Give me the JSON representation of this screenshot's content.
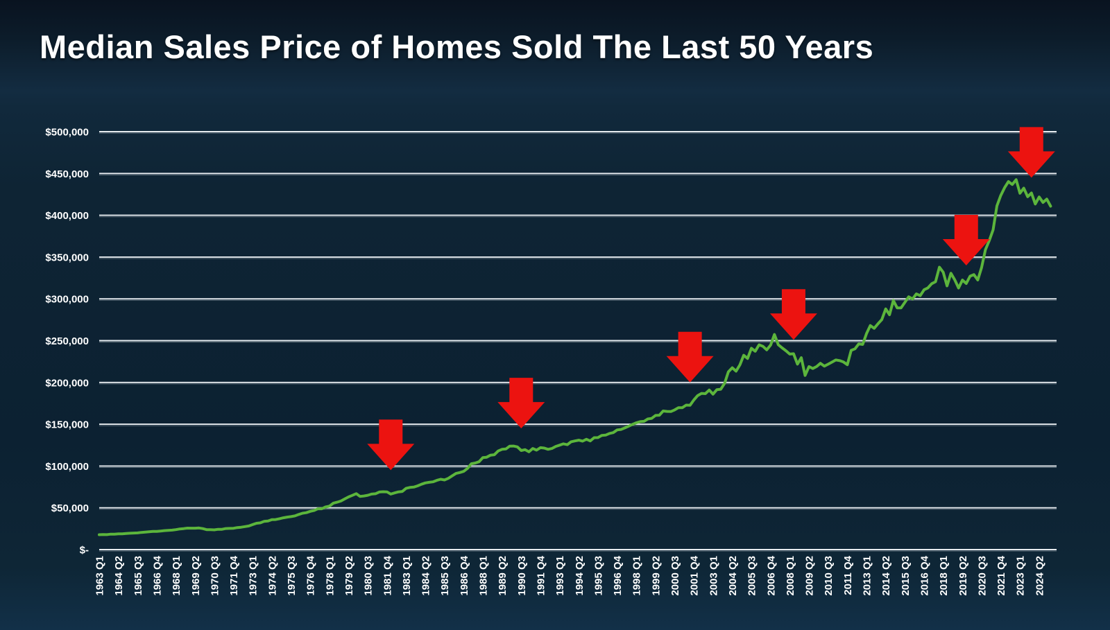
{
  "page": {
    "title": "Median Sales Price of Homes Sold The Last 50 Years"
  },
  "theme": {
    "background": "#0d2233",
    "title_color": "#ffffff",
    "grid_color": "#e8edf1",
    "grid_shadow_color": "#9fabb4",
    "line_color": "#5cb53c",
    "arrow_color": "#ec1310",
    "axis_label_color": "#ffffff"
  },
  "chart_data": {
    "type": "line",
    "title": "Median Sales Price of Homes Sold The Last 50 Years",
    "frequency": "quarterly",
    "x_start": "1963 Q1",
    "x_end": "2025 Q1",
    "grid": true,
    "legend": "none",
    "ylim": [
      0,
      500000
    ],
    "y_tick_step": 50000,
    "y_tick_labels": [
      "$-",
      "$50,000",
      "$100,000",
      "$150,000",
      "$200,000",
      "$250,000",
      "$300,000",
      "$350,000",
      "$400,000",
      "$450,000",
      "$500,000"
    ],
    "x_tick_interval": 5,
    "x_tick_labels": [
      "1963 Q1",
      "1964 Q2",
      "1965 Q3",
      "1966 Q4",
      "1968 Q1",
      "1969 Q2",
      "1970 Q3",
      "1971 Q4",
      "1973 Q1",
      "1974 Q2",
      "1975 Q3",
      "1976 Q4",
      "1978 Q1",
      "1979 Q2",
      "1980 Q3",
      "1981 Q4",
      "1983 Q1",
      "1984 Q2",
      "1985 Q3",
      "1986 Q4",
      "1988 Q1",
      "1989 Q2",
      "1990 Q3",
      "1991 Q4",
      "1993 Q1",
      "1994 Q2",
      "1995 Q3",
      "1996 Q4",
      "1998 Q1",
      "1999 Q2",
      "2000 Q3",
      "2001 Q4",
      "2003 Q1",
      "2004 Q2",
      "2005 Q3",
      "2006 Q4",
      "2008 Q1",
      "2009 Q2",
      "2010 Q3",
      "2011 Q4",
      "2013 Q1",
      "2014 Q2",
      "2015 Q3",
      "2016 Q4",
      "2018 Q1",
      "2019 Q2",
      "2020 Q3",
      "2021 Q4",
      "2023 Q1",
      "2024 Q2"
    ],
    "values": [
      17800,
      18000,
      17900,
      18500,
      18500,
      18900,
      18900,
      19300,
      19600,
      19800,
      20000,
      20600,
      21000,
      21400,
      21700,
      21700,
      22200,
      22700,
      23000,
      23300,
      23900,
      24700,
      25100,
      25700,
      25600,
      25600,
      25900,
      25100,
      23900,
      23900,
      23600,
      24300,
      24300,
      25200,
      25400,
      25500,
      26400,
      26800,
      27500,
      28300,
      29900,
      31500,
      32000,
      33800,
      34200,
      35800,
      36000,
      37000,
      38100,
      38900,
      39500,
      40300,
      42000,
      43500,
      44200,
      45800,
      46800,
      48800,
      48800,
      51000,
      52000,
      55500,
      56700,
      58100,
      60600,
      63000,
      64900,
      66900,
      63700,
      64200,
      65000,
      66400,
      66800,
      68900,
      69200,
      69100,
      66400,
      67800,
      69100,
      69600,
      73300,
      74400,
      74800,
      76300,
      78200,
      79800,
      80500,
      81100,
      82800,
      84200,
      83300,
      85200,
      88200,
      91100,
      92200,
      93600,
      97200,
      102700,
      103600,
      105100,
      110000,
      110500,
      113000,
      113500,
      118000,
      120000,
      120400,
      123800,
      123900,
      122900,
      118600,
      119600,
      117000,
      121000,
      119000,
      122000,
      121500,
      120000,
      121000,
      123500,
      125000,
      126500,
      125500,
      129000,
      130000,
      130900,
      129800,
      132000,
      130000,
      133900,
      134000,
      136600,
      137000,
      139000,
      140000,
      143200,
      143800,
      145600,
      147700,
      149800,
      151700,
      153100,
      153500,
      156300,
      157000,
      160500,
      160800,
      165800,
      165300,
      165200,
      167200,
      169800,
      169800,
      172900,
      172600,
      179100,
      184300,
      186900,
      186600,
      190900,
      186000,
      191400,
      191900,
      198800,
      212700,
      217600,
      213500,
      221000,
      232500,
      228700,
      240900,
      237300,
      245000,
      243200,
      239000,
      244700,
      257400,
      245200,
      241400,
      237900,
      233900,
      234300,
      221900,
      229600,
      208400,
      219000,
      216700,
      219000,
      222900,
      219500,
      221800,
      224300,
      226900,
      226100,
      224500,
      221200,
      238400,
      240200,
      246200,
      245400,
      258400,
      268100,
      264800,
      270200,
      275200,
      288000,
      281000,
      298100,
      289200,
      289100,
      295800,
      302500,
      299800,
      306000,
      303800,
      310900,
      313100,
      318200,
      320500,
      337900,
      331800,
      315600,
      330600,
      322800,
      313000,
      322500,
      318400,
      327100,
      329000,
      322600,
      337500,
      358700,
      369800,
      382600,
      411200,
      423600,
      433100,
      440300,
      436800,
      442600,
      426400,
      432400,
      422200,
      426600,
      413500,
      421900,
      415300,
      419300,
      410900
    ],
    "annotations": {
      "type": "down-arrows",
      "meaning": "recession markers",
      "color": "#ec1310",
      "items": [
        {
          "quarter": "1982 Q1",
          "index": 76,
          "tip_value": 95000
        },
        {
          "quarter": "1990 Q3",
          "index": 110,
          "tip_value": 145000
        },
        {
          "quarter": "2001 Q3",
          "index": 154,
          "tip_value": 200000
        },
        {
          "quarter": "2008 Q2",
          "index": 181,
          "tip_value": 251000
        },
        {
          "quarter": "2019 Q3",
          "index": 226,
          "tip_value": 340000
        },
        {
          "quarter": "2023 Q4",
          "index": 243,
          "tip_value": 445000
        }
      ]
    }
  }
}
